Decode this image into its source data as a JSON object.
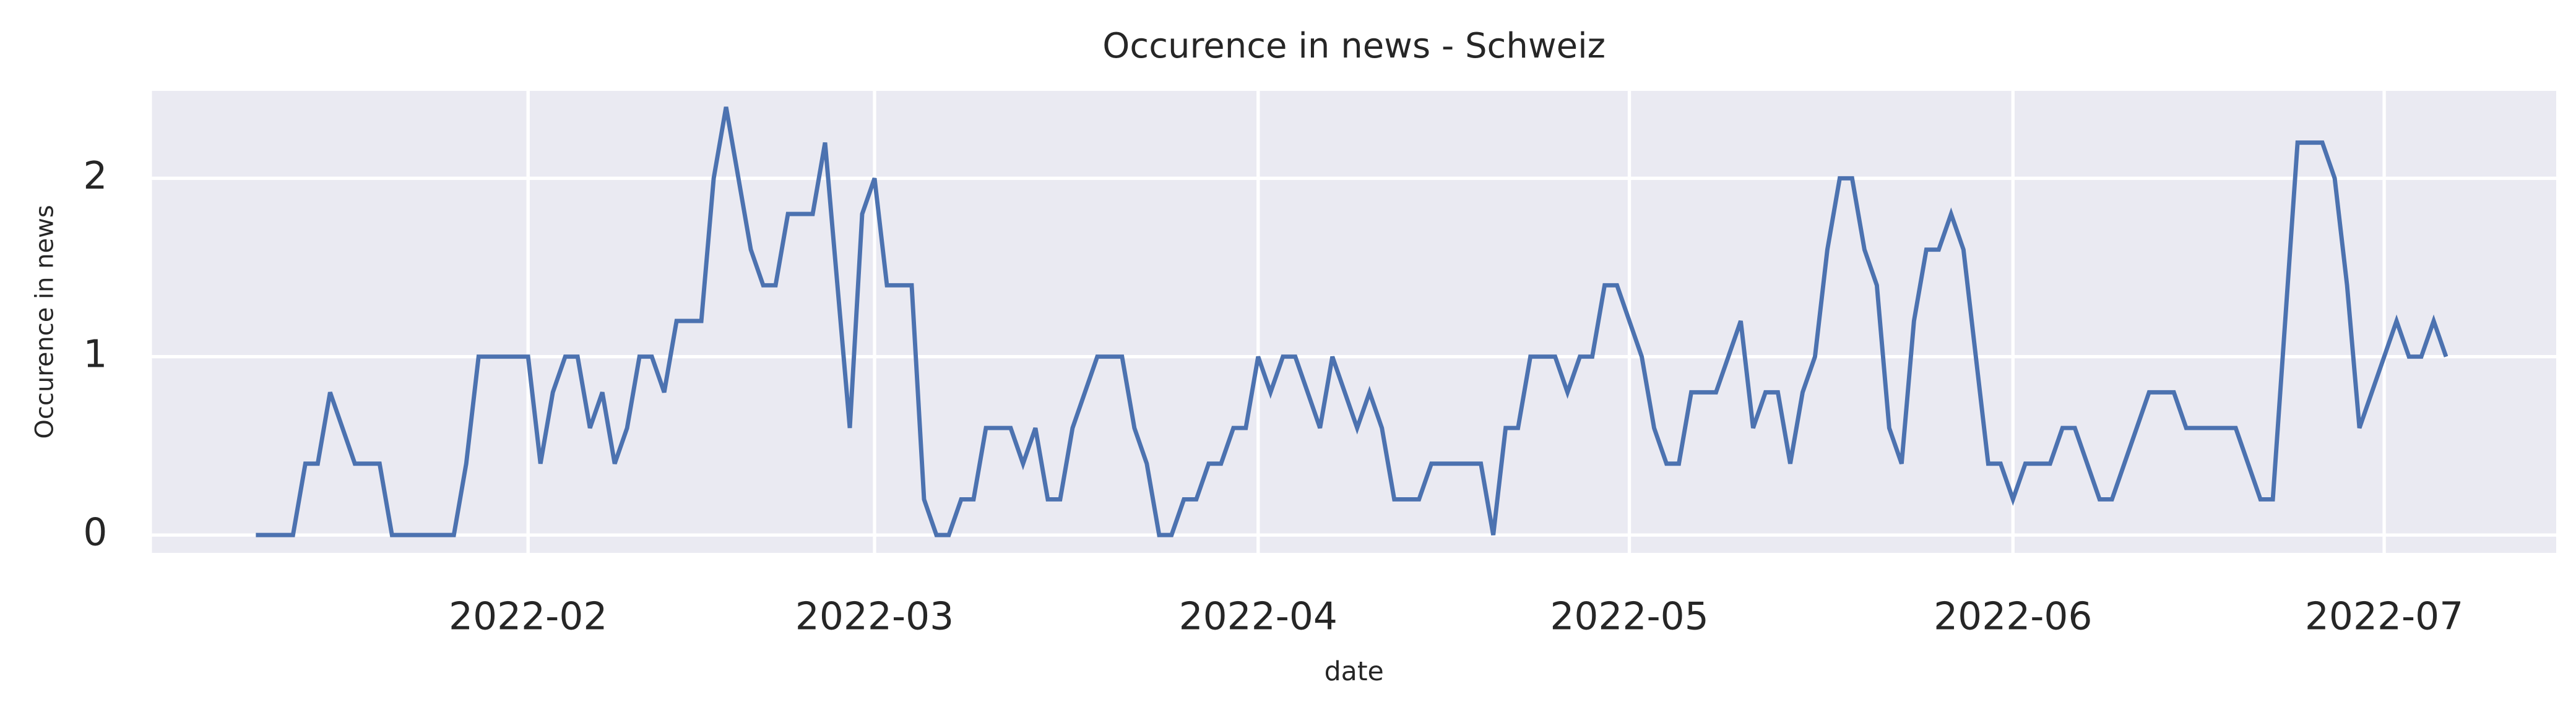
{
  "chart_data": {
    "type": "line",
    "title": "Occurence in news - Schweiz",
    "xlabel": "date",
    "ylabel": "Occurence in news",
    "x": [
      10,
      13,
      14,
      15,
      16,
      18,
      20,
      21,
      26,
      27,
      28,
      32,
      33,
      34,
      35,
      36,
      37,
      38,
      39,
      40,
      41,
      42,
      43,
      44,
      46,
      47,
      48,
      50,
      51,
      52,
      53,
      55,
      56,
      58,
      59,
      60,
      61,
      63,
      64,
      65,
      66,
      67,
      68,
      69,
      71,
      72,
      73,
      74,
      75,
      76,
      78,
      80,
      81,
      82,
      83,
      84,
      85,
      86,
      87,
      88,
      89,
      90,
      91,
      92,
      93,
      94,
      96,
      97,
      99,
      100,
      101,
      102,
      104,
      105,
      109,
      110,
      111,
      112,
      113,
      115,
      116,
      117,
      118,
      119,
      120,
      122,
      123,
      124,
      125,
      126,
      128,
      130,
      131,
      132,
      133,
      134,
      135,
      136,
      137,
      138,
      139,
      140,
      141,
      142,
      143,
      144,
      145,
      146,
      147,
      148,
      150,
      151,
      152,
      153,
      155,
      156,
      157,
      159,
      160,
      163,
      165,
      166,
      170,
      172,
      173,
      175,
      177,
      178,
      179,
      180,
      183,
      184,
      185,
      186,
      187
    ],
    "series": [
      {
        "name": "Occurence in news",
        "color": "#4c72b0",
        "values": [
          0,
          0,
          0.4,
          0.4,
          0.8,
          0.4,
          0.4,
          0,
          0,
          0.4,
          1,
          1,
          0.4,
          0.8,
          1,
          1,
          0.6,
          0.8,
          0.4,
          0.6,
          1,
          1,
          0.8,
          1.2,
          1.2,
          2,
          2.4,
          1.6,
          1.4,
          1.4,
          1.8,
          1.8,
          2.2,
          0.6,
          1.8,
          2,
          1.4,
          1.4,
          0.2,
          0,
          0,
          0.2,
          0.2,
          0.6,
          0.6,
          0.4,
          0.6,
          0.2,
          0.2,
          0.6,
          1,
          1,
          0.6,
          0.4,
          0,
          0,
          0.2,
          0.2,
          0.4,
          0.4,
          0.6,
          0.6,
          1,
          0.8,
          1,
          1,
          0.6,
          1,
          0.6,
          0.8,
          0.6,
          0.2,
          0.2,
          0.4,
          0.4,
          0,
          0.6,
          0.6,
          1,
          1,
          0.8,
          1,
          1,
          1.4,
          1.4,
          1,
          0.6,
          0.4,
          0.4,
          0.8,
          0.8,
          1.2,
          0.6,
          0.8,
          0.8,
          0.4,
          0.8,
          1,
          1.6,
          2,
          2,
          1.6,
          1.4,
          0.6,
          0.4,
          1.2,
          1.6,
          1.6,
          1.8,
          1.6,
          0.4,
          0.4,
          0.2,
          0.4,
          0.4,
          0.6,
          0.6,
          0.2,
          0.2,
          0.8,
          0.8,
          0.6,
          0.6,
          0.2,
          0.2,
          2.2,
          2.2,
          2,
          1.4,
          0.6,
          1.2,
          1,
          1,
          1.2,
          1
        ]
      }
    ],
    "xlim": [
      1.6,
      195.9
    ],
    "xticks": [
      {
        "value": 32,
        "label": "2022-02"
      },
      {
        "value": 60,
        "label": "2022-03"
      },
      {
        "value": 91,
        "label": "2022-04"
      },
      {
        "value": 121,
        "label": "2022-05"
      },
      {
        "value": 152,
        "label": "2022-06"
      },
      {
        "value": 182,
        "label": "2022-07"
      }
    ],
    "ylim": [
      -0.1,
      2.49
    ],
    "yticks": [
      0,
      1,
      2
    ],
    "grid": true,
    "background": "#eaeaf2"
  }
}
